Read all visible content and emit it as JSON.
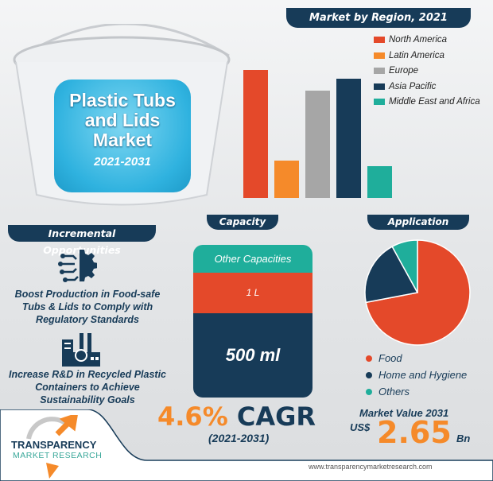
{
  "hero": {
    "title": "Plastic Tubs and Lids Market",
    "years": "2021-2031"
  },
  "colors": {
    "navy": "#173b58",
    "orange": "#f58a2a",
    "red": "#e4492a",
    "gray": "#a6a6a6",
    "teal": "#1fae9b"
  },
  "chart_data": [
    {
      "type": "bar",
      "title": "Market by Region, 2021",
      "categories": [
        "North America",
        "Latin America",
        "Europe",
        "Asia Pacific",
        "Middle East and Africa"
      ],
      "values": [
        100,
        29,
        84,
        93,
        25
      ],
      "value_note_unit": "relative index (no axis printed)",
      "colors": [
        "#e4492a",
        "#f58a2a",
        "#a6a6a6",
        "#173b58",
        "#1fae9b"
      ],
      "legend": "top-right",
      "grid": false
    },
    {
      "type": "bar",
      "stacked": true,
      "title": "Capacity",
      "categories": [
        "Other Capacities",
        "1 L",
        "500 ml"
      ],
      "values": [
        18,
        27,
        55
      ],
      "colors": [
        "#1fae9b",
        "#e4492a",
        "#173b58"
      ]
    },
    {
      "type": "pie",
      "title": "Application",
      "categories": [
        "Food",
        "Home and Hygiene",
        "Others"
      ],
      "values": [
        72,
        20,
        8
      ],
      "colors": [
        "#e4492a",
        "#173b58",
        "#1fae9b"
      ],
      "legend": "bottom"
    }
  ],
  "opportunities": {
    "heading": "Incremental Opportunities",
    "items": [
      {
        "icon": "ai-gear-icon",
        "text": "Boost Production in Food-safe Tubs & Lids to Comply with Regulatory Standards"
      },
      {
        "icon": "factory-recycle-icon",
        "text": "Increase R&D in Recycled Plastic Containers to Achieve Sustainability Goals"
      }
    ]
  },
  "cagr": {
    "value": "4.6%",
    "label": "CAGR",
    "period": "(2021-2031)"
  },
  "market_value": {
    "label": "Market Value 2031",
    "currency": "US$",
    "value": "2.65",
    "unit": "Bn"
  },
  "footer": {
    "brand": "TRANSPARENCY",
    "brand2": "MARKET RESEARCH",
    "url": "www.transparencymarketresearch.com"
  }
}
